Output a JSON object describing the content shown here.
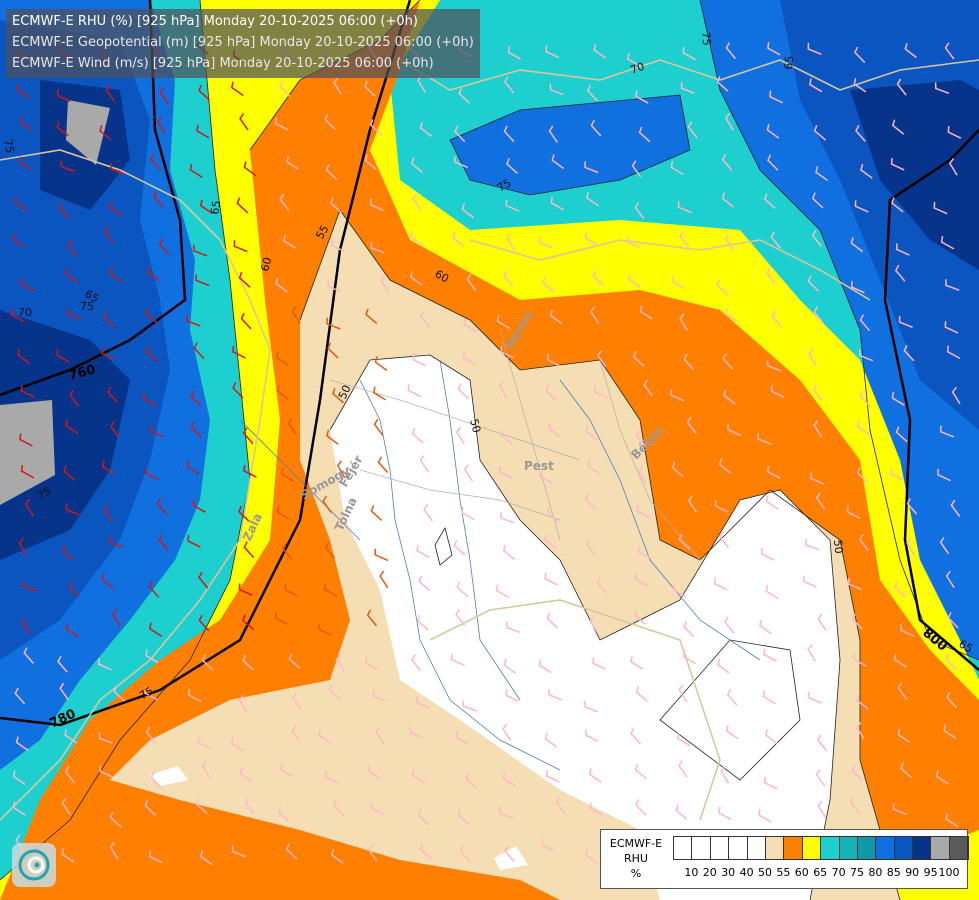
{
  "title": {
    "line1": "ECMWF-E RHU (%) [925 hPa] Monday 20-10-2025 06:00 (+0h)",
    "line2": "ECMWF-E Geopotential (m) [925 hPa] Monday 20-10-2025 06:00 (+0h)",
    "line3": "ECMWF-E Wind (m/s) [925 hPa] Monday 20-10-2025 06:00 (+0h)"
  },
  "legend": {
    "title_line1": "ECMWF-E",
    "title_line2": "RHU",
    "unit": "%",
    "colors": [
      "#ffffff",
      "#ffffff",
      "#ffffff",
      "#ffffff",
      "#ffffff",
      "#f5deb3",
      "#ff8000",
      "#ffff00",
      "#1ecfcf",
      "#14b4b4",
      "#0f99a8",
      "#1070e0",
      "#0a55c0",
      "#06348a",
      "#a9a9a9",
      "#5a5a5a"
    ],
    "labels": [
      "10",
      "20",
      "30",
      "40",
      "50",
      "55",
      "60",
      "65",
      "70",
      "75",
      "80",
      "85",
      "90",
      "95",
      "100"
    ]
  },
  "contour_labels": {
    "rhu": [
      "75",
      "70",
      "65",
      "60",
      "55",
      "60",
      "50",
      "50",
      "75",
      "75",
      "75",
      "70",
      "65",
      "50",
      "75",
      "65",
      "75",
      "65"
    ],
    "geopotential": [
      "760",
      "780",
      "800"
    ]
  },
  "region_labels": [
    "Pest",
    "Heves",
    "Békés",
    "Fejér",
    "Tolna",
    "Zala",
    "Somogy"
  ]
}
